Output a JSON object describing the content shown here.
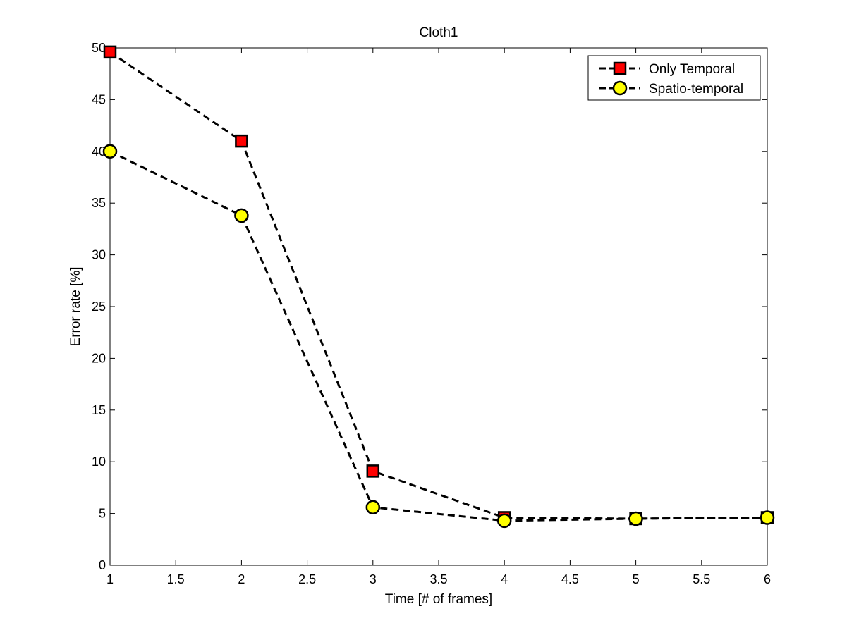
{
  "chart_data": {
    "type": "line",
    "title": "Cloth1",
    "xlabel": "Time [# of frames]",
    "ylabel": "Error rate [%]",
    "xlim": [
      1,
      6
    ],
    "ylim": [
      0,
      50
    ],
    "xticks": [
      1,
      1.5,
      2,
      2.5,
      3,
      3.5,
      4,
      4.5,
      5,
      5.5,
      6
    ],
    "yticks": [
      0,
      5,
      10,
      15,
      20,
      25,
      30,
      35,
      40,
      45,
      50
    ],
    "grid": false,
    "legend_position": "top-right",
    "x": [
      1,
      2,
      3,
      4,
      5,
      6
    ],
    "series": [
      {
        "name": "Only Temporal",
        "values": [
          49.6,
          41.0,
          9.1,
          4.6,
          4.5,
          4.6
        ],
        "line_style": "dashed",
        "line_color": "#000000",
        "marker": "square",
        "marker_fill": "#ff0000"
      },
      {
        "name": "Spatio-temporal",
        "values": [
          40.0,
          33.8,
          5.6,
          4.3,
          4.5,
          4.6
        ],
        "line_style": "dashed",
        "line_color": "#000000",
        "marker": "circle",
        "marker_fill": "#ffff00"
      }
    ]
  }
}
